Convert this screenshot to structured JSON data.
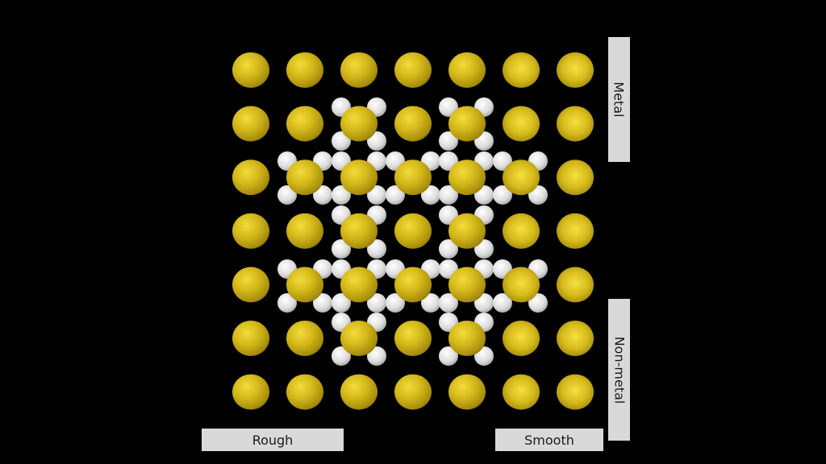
{
  "labels": {
    "rough": "Rough",
    "smooth": "Smooth",
    "metal": "Metal",
    "non_metal": "Non-metal"
  },
  "colors": {
    "background": "#000000",
    "sphere_gold": "#d4b81a",
    "sphere_white": "#e6e6e6",
    "label_box": "#d9d9d9"
  },
  "scene": {
    "main_grid_rows": 7,
    "main_grid_cols": 7,
    "main_sphere_material": "gold",
    "axis_horizontal": "roughness",
    "axis_vertical": "metalness",
    "background_sphere_material": "white"
  }
}
